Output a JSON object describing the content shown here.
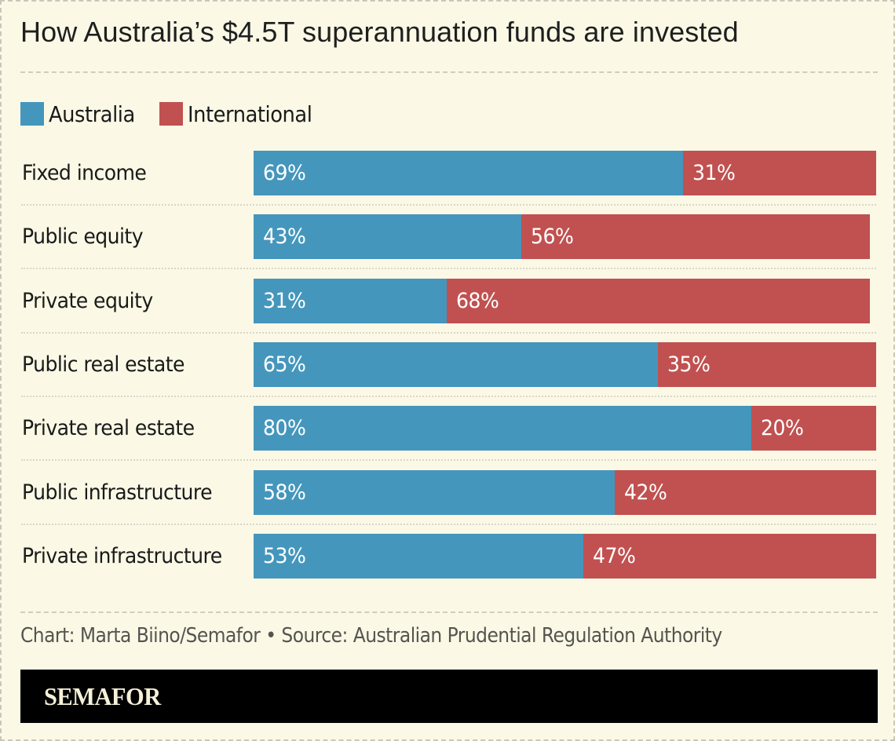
{
  "title": "How Australia’s $4.5T superannuation funds are invested",
  "legend": [
    {
      "label": "Australia",
      "color": "#4596bc"
    },
    {
      "label": "International",
      "color": "#c05150"
    }
  ],
  "rows": [
    {
      "label": "Fixed income",
      "australia": 69,
      "international": 31,
      "australia_text": "69%",
      "international_text": "31%"
    },
    {
      "label": "Public equity",
      "australia": 43,
      "international": 56,
      "australia_text": "43%",
      "international_text": "56%"
    },
    {
      "label": "Private equity",
      "australia": 31,
      "international": 68,
      "australia_text": "31%",
      "international_text": "68%"
    },
    {
      "label": "Public real estate",
      "australia": 65,
      "international": 35,
      "australia_text": "65%",
      "international_text": "35%"
    },
    {
      "label": "Private real estate",
      "australia": 80,
      "international": 20,
      "australia_text": "80%",
      "international_text": "20%"
    },
    {
      "label": "Public infrastructure",
      "australia": 58,
      "international": 42,
      "australia_text": "58%",
      "international_text": "42%"
    },
    {
      "label": "Private infrastructure",
      "australia": 53,
      "international": 47,
      "australia_text": "53%",
      "international_text": "47%"
    }
  ],
  "credit": "Chart: Marta Biino/Semafor • Source: Australian Prudential Regulation Authority",
  "brand": "SEMAFOR",
  "chart_data": {
    "type": "bar",
    "orientation": "horizontal",
    "stacked": true,
    "title": "How Australia’s $4.5T superannuation funds are invested",
    "categories": [
      "Fixed income",
      "Public equity",
      "Private equity",
      "Public real estate",
      "Private real estate",
      "Public infrastructure",
      "Private infrastructure"
    ],
    "series": [
      {
        "name": "Australia",
        "color": "#4596bc",
        "values": [
          69,
          43,
          31,
          65,
          80,
          58,
          53
        ]
      },
      {
        "name": "International",
        "color": "#c05150",
        "values": [
          31,
          56,
          68,
          35,
          20,
          42,
          47
        ]
      }
    ],
    "xlabel": "",
    "ylabel": "",
    "xlim": [
      0,
      100
    ],
    "units": "%",
    "grid": false,
    "legend_position": "top-left",
    "data_labels": true,
    "source": "Australian Prudential Regulation Authority",
    "credit": "Chart: Marta Biino/Semafor"
  }
}
